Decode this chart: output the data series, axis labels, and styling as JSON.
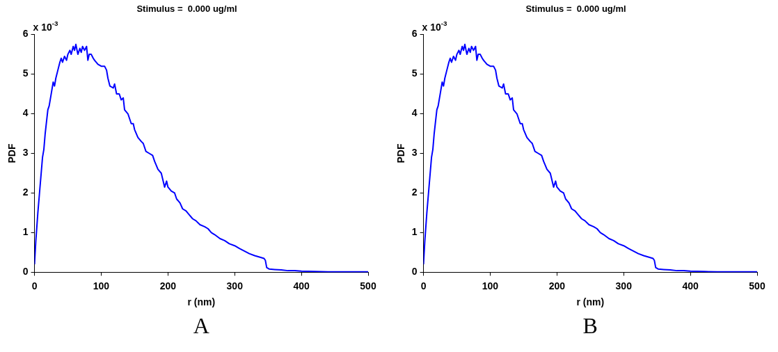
{
  "chart_data": [
    {
      "type": "line",
      "title": "Stimulus =  0.000 ug/ml",
      "xlabel": "r (nm)",
      "ylabel": "PDF",
      "marker": "none",
      "grid": false,
      "legend": false,
      "xlim": [
        0,
        500
      ],
      "xticks": [
        0,
        100,
        200,
        300,
        400,
        500
      ],
      "ylim": [
        0,
        6
      ],
      "yticks": [
        0,
        1,
        2,
        3,
        4,
        5,
        6
      ],
      "annotations": [
        "x 10$^{-3}$",
        "A"
      ],
      "x": [
        0,
        2,
        5,
        8,
        10,
        12,
        14,
        16,
        18,
        20,
        22,
        25,
        28,
        30,
        32,
        35,
        38,
        40,
        42,
        45,
        48,
        50,
        53,
        55,
        58,
        60,
        62,
        65,
        68,
        70,
        72,
        75,
        78,
        80,
        82,
        85,
        88,
        90,
        95,
        100,
        105,
        108,
        110,
        113,
        118,
        120,
        123,
        127,
        130,
        133,
        135,
        140,
        145,
        148,
        150,
        155,
        160,
        163,
        167,
        172,
        177,
        180,
        185,
        190,
        195,
        198,
        200,
        205,
        210,
        213,
        218,
        222,
        227,
        232,
        237,
        242,
        248,
        255,
        260,
        265,
        270,
        278,
        285,
        292,
        300,
        307,
        315,
        322,
        330,
        338,
        344,
        346,
        348,
        352,
        360,
        370,
        380,
        390,
        400,
        420,
        440,
        460,
        480,
        500
      ],
      "series": [
        {
          "color": "#0000ff",
          "values": [
            0.2,
            0.8,
            1.5,
            2.1,
            2.5,
            2.9,
            3.1,
            3.5,
            3.8,
            4.1,
            4.2,
            4.5,
            4.8,
            4.7,
            4.9,
            5.1,
            5.3,
            5.4,
            5.3,
            5.45,
            5.35,
            5.5,
            5.6,
            5.5,
            5.7,
            5.6,
            5.75,
            5.5,
            5.65,
            5.55,
            5.7,
            5.6,
            5.7,
            5.35,
            5.5,
            5.5,
            5.4,
            5.35,
            5.25,
            5.2,
            5.2,
            5.1,
            4.9,
            4.7,
            4.65,
            4.75,
            4.5,
            4.5,
            4.35,
            4.4,
            4.1,
            4.0,
            3.75,
            3.75,
            3.6,
            3.4,
            3.3,
            3.25,
            3.05,
            3.0,
            2.95,
            2.8,
            2.6,
            2.5,
            2.15,
            2.3,
            2.15,
            2.05,
            2.0,
            1.85,
            1.75,
            1.6,
            1.55,
            1.45,
            1.35,
            1.3,
            1.2,
            1.15,
            1.1,
            1.0,
            0.95,
            0.85,
            0.8,
            0.72,
            0.67,
            0.6,
            0.53,
            0.47,
            0.42,
            0.38,
            0.35,
            0.3,
            0.12,
            0.08,
            0.07,
            0.06,
            0.04,
            0.04,
            0.03,
            0.02,
            0.01,
            0.01,
            0.01,
            0.01
          ]
        }
      ]
    },
    {
      "type": "line",
      "title": "Stimulus =  0.000 ug/ml",
      "xlabel": "r (nm)",
      "ylabel": "PDF",
      "marker": "none",
      "grid": false,
      "legend": false,
      "xlim": [
        0,
        500
      ],
      "xticks": [
        0,
        100,
        200,
        300,
        400,
        500
      ],
      "ylim": [
        0,
        6
      ],
      "yticks": [
        0,
        1,
        2,
        3,
        4,
        5,
        6
      ],
      "annotations": [
        "x 10$^{-3}$",
        "B"
      ],
      "x": [
        0,
        2,
        5,
        8,
        10,
        12,
        14,
        16,
        18,
        20,
        22,
        25,
        28,
        30,
        32,
        35,
        38,
        40,
        42,
        45,
        48,
        50,
        53,
        55,
        58,
        60,
        62,
        65,
        68,
        70,
        72,
        75,
        78,
        80,
        82,
        85,
        88,
        90,
        95,
        100,
        105,
        108,
        110,
        113,
        118,
        120,
        123,
        127,
        130,
        133,
        135,
        140,
        145,
        148,
        150,
        155,
        160,
        163,
        167,
        172,
        177,
        180,
        185,
        190,
        195,
        198,
        200,
        205,
        210,
        213,
        218,
        222,
        227,
        232,
        237,
        242,
        248,
        255,
        260,
        265,
        270,
        278,
        285,
        292,
        300,
        307,
        315,
        322,
        330,
        338,
        344,
        346,
        348,
        352,
        360,
        370,
        380,
        390,
        400,
        420,
        440,
        460,
        480,
        500
      ],
      "series": [
        {
          "color": "#0000ff",
          "values": [
            0.2,
            0.8,
            1.5,
            2.1,
            2.5,
            2.9,
            3.1,
            3.5,
            3.8,
            4.1,
            4.2,
            4.5,
            4.8,
            4.7,
            4.9,
            5.1,
            5.3,
            5.4,
            5.3,
            5.45,
            5.35,
            5.5,
            5.6,
            5.5,
            5.7,
            5.6,
            5.75,
            5.5,
            5.65,
            5.55,
            5.7,
            5.6,
            5.7,
            5.35,
            5.5,
            5.5,
            5.4,
            5.35,
            5.25,
            5.2,
            5.2,
            5.1,
            4.9,
            4.7,
            4.65,
            4.75,
            4.5,
            4.5,
            4.35,
            4.4,
            4.1,
            4.0,
            3.75,
            3.75,
            3.6,
            3.4,
            3.3,
            3.25,
            3.05,
            3.0,
            2.95,
            2.8,
            2.6,
            2.5,
            2.15,
            2.3,
            2.15,
            2.05,
            2.0,
            1.85,
            1.75,
            1.6,
            1.55,
            1.45,
            1.35,
            1.3,
            1.2,
            1.15,
            1.1,
            1.0,
            0.95,
            0.85,
            0.8,
            0.72,
            0.67,
            0.6,
            0.53,
            0.47,
            0.42,
            0.38,
            0.35,
            0.3,
            0.12,
            0.08,
            0.07,
            0.06,
            0.04,
            0.04,
            0.03,
            0.02,
            0.01,
            0.01,
            0.01,
            0.01
          ]
        }
      ]
    }
  ]
}
